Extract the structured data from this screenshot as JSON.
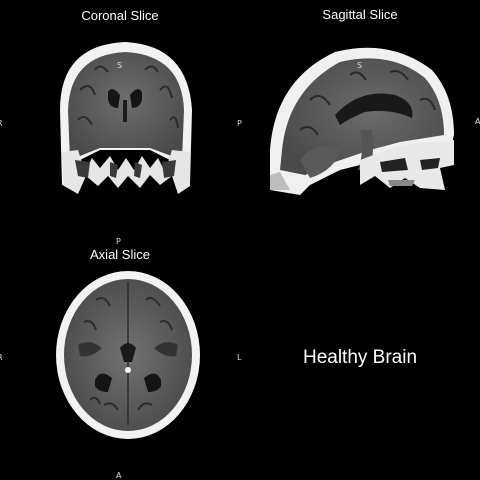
{
  "panels": {
    "coronal": {
      "title": "Coronal Slice",
      "orient_top": "S",
      "orient_left": "R",
      "orient_right": "P"
    },
    "sagittal": {
      "title": "Sagittal Slice",
      "orient_top": "S",
      "orient_right": "A"
    },
    "axial": {
      "title": "Axial Slice",
      "orient_top": "P",
      "orient_bottom": "A",
      "orient_left": "R",
      "orient_right": "L"
    }
  },
  "diagnosis_label": "Healthy Brain"
}
